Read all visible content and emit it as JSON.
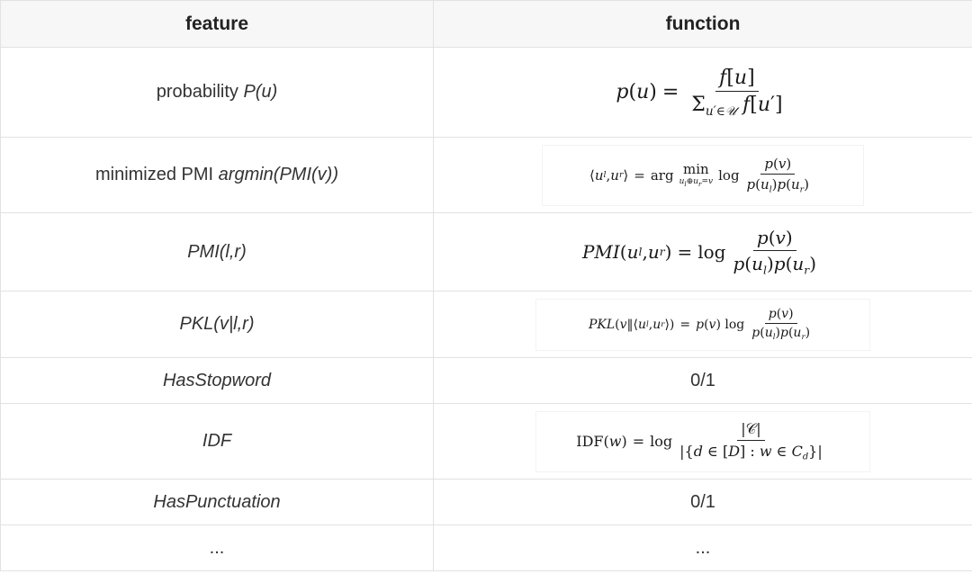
{
  "table": {
    "headers": {
      "feature": "feature",
      "function": "function"
    },
    "rows": [
      {
        "feature_prefix": "probability ",
        "feature_italic": "P(u)",
        "function_formula": "p(u) = f[u] / Σ_{u′∈𝒰} f[u′]"
      },
      {
        "feature_prefix": "minimized PMI ",
        "feature_italic": "argmin(PMI(v))",
        "function_formula": "⟨u_l, u_r⟩ = arg min_{u_l⊕u_r=v} log p(v) / p(u_l)p(u_r)"
      },
      {
        "feature_prefix": "",
        "feature_italic": "PMI(l,r)",
        "function_formula": "PMI(u_l, u_r) = log p(v) / p(u_l)p(u_r)"
      },
      {
        "feature_prefix": "",
        "feature_italic": "PKL(v|l,r)",
        "function_formula": "PKL(v‖⟨u_l, u_r⟩) = p(v) log p(v) / p(u_l)p(u_r)"
      },
      {
        "feature_prefix": "",
        "feature_italic": "HasStopword",
        "function_text": "0/1"
      },
      {
        "feature_prefix": "",
        "feature_italic": "IDF",
        "function_formula": "IDF(w) = log |𝒞| / |{d ∈ [D] : w ∈ C_d}|"
      },
      {
        "feature_prefix": "",
        "feature_italic": "HasPunctuation",
        "function_text": "0/1"
      },
      {
        "feature_prefix": "...",
        "feature_italic": "",
        "function_text": "..."
      }
    ]
  }
}
